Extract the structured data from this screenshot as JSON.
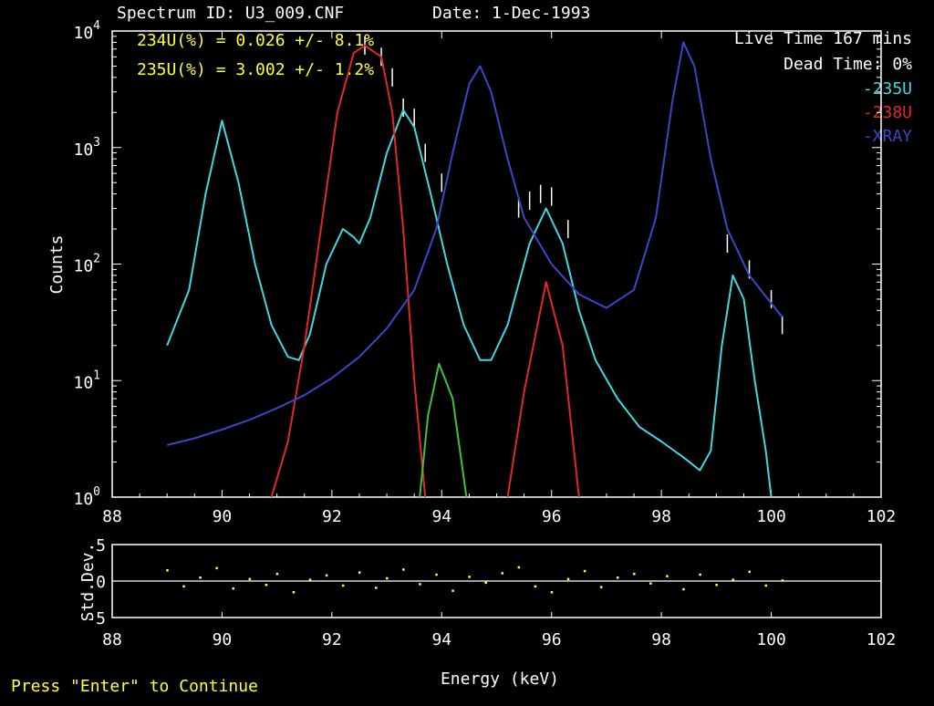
{
  "header": {
    "spectrum_id": "Spectrum ID: U3_009.CNF",
    "date": "Date:   1-Dec-1993"
  },
  "results": {
    "line1": "234U(%) = 0.026 +/-  8.1%",
    "line2": "235U(%) = 3.002 +/-  1.2%"
  },
  "info": {
    "live_time": "Live Time 167 mins",
    "dead_time": "Dead Time:   0%"
  },
  "footer": {
    "prompt": "Press \"Enter\" to Continue"
  },
  "colors": {
    "background": "#000000",
    "data": "#ffffff",
    "u235": "#40d8e0",
    "u238": "#e02828",
    "xray": "#3848c8",
    "green": "#40c040",
    "residual": "#ffff3c"
  },
  "chart_data": [
    {
      "type": "line",
      "ylabel": "Counts",
      "xlabel": "",
      "y_scale": "log",
      "xlim": [
        88,
        102
      ],
      "ylim": [
        1,
        10000
      ],
      "x_ticks": [
        "88",
        "90",
        "92",
        "94",
        "96",
        "98",
        "100",
        "102"
      ],
      "y_ticks": [
        {
          "base": "10",
          "exp": "0"
        },
        {
          "base": "10",
          "exp": "1"
        },
        {
          "base": "10",
          "exp": "2"
        },
        {
          "base": "10",
          "exp": "3"
        },
        {
          "base": "10",
          "exp": "4"
        }
      ],
      "legend": [
        "-235U",
        "-238U",
        "-XRAY"
      ],
      "legend_position": "top-right",
      "series": [
        {
          "name": "-235U",
          "points": [
            [
              89.0,
              20
            ],
            [
              89.4,
              60
            ],
            [
              89.7,
              400
            ],
            [
              90.0,
              1700
            ],
            [
              90.3,
              500
            ],
            [
              90.6,
              100
            ],
            [
              90.9,
              30
            ],
            [
              91.2,
              16
            ],
            [
              91.4,
              15
            ],
            [
              91.6,
              25
            ],
            [
              91.9,
              100
            ],
            [
              92.2,
              200
            ],
            [
              92.4,
              170
            ],
            [
              92.5,
              150
            ],
            [
              92.7,
              250
            ],
            [
              93.0,
              900
            ],
            [
              93.3,
              2100
            ],
            [
              93.5,
              1500
            ],
            [
              93.8,
              400
            ],
            [
              94.1,
              100
            ],
            [
              94.4,
              30
            ],
            [
              94.7,
              15
            ],
            [
              94.9,
              15
            ],
            [
              95.2,
              30
            ],
            [
              95.6,
              150
            ],
            [
              95.9,
              300
            ],
            [
              96.2,
              150
            ],
            [
              96.5,
              40
            ],
            [
              96.8,
              15
            ],
            [
              97.2,
              7
            ],
            [
              97.6,
              4
            ],
            [
              98.0,
              3
            ],
            [
              98.4,
              2.2
            ],
            [
              98.7,
              1.7
            ],
            [
              98.9,
              2.5
            ],
            [
              99.1,
              20
            ],
            [
              99.3,
              80
            ],
            [
              99.5,
              50
            ],
            [
              99.7,
              10
            ],
            [
              99.9,
              2.5
            ],
            [
              100.0,
              1.0
            ]
          ]
        },
        {
          "name": "-238U",
          "points": [
            [
              90.9,
              1.0
            ],
            [
              91.2,
              3
            ],
            [
              91.5,
              20
            ],
            [
              91.8,
              200
            ],
            [
              92.1,
              2000
            ],
            [
              92.4,
              6500
            ],
            [
              92.6,
              7500
            ],
            [
              92.9,
              6000
            ],
            [
              93.1,
              2000
            ],
            [
              93.3,
              200
            ],
            [
              93.5,
              10
            ],
            [
              93.7,
              1.0
            ]
          ]
        },
        {
          "name": "",
          "points": [
            [
              95.2,
              1.0
            ],
            [
              95.5,
              8
            ],
            [
              95.9,
              70
            ],
            [
              96.2,
              20
            ],
            [
              96.5,
              1.0
            ]
          ]
        },
        {
          "name": "-XRAY",
          "points": [
            [
              89.0,
              2.8
            ],
            [
              89.5,
              3.2
            ],
            [
              90.0,
              3.8
            ],
            [
              90.5,
              4.6
            ],
            [
              91.0,
              5.8
            ],
            [
              91.5,
              7.5
            ],
            [
              92.0,
              10.5
            ],
            [
              92.5,
              16
            ],
            [
              93.0,
              28
            ],
            [
              93.5,
              60
            ],
            [
              93.9,
              200
            ],
            [
              94.2,
              900
            ],
            [
              94.5,
              3500
            ],
            [
              94.7,
              5000
            ],
            [
              94.9,
              3000
            ],
            [
              95.2,
              800
            ],
            [
              95.5,
              250
            ],
            [
              96.0,
              100
            ],
            [
              96.5,
              55
            ],
            [
              97.0,
              42
            ],
            [
              97.5,
              60
            ],
            [
              97.9,
              250
            ],
            [
              98.2,
              2500
            ],
            [
              98.4,
              8000
            ],
            [
              98.6,
              5000
            ],
            [
              98.9,
              800
            ],
            [
              99.2,
              200
            ],
            [
              99.6,
              80
            ],
            [
              100.2,
              35
            ]
          ]
        },
        {
          "name": "",
          "points": [
            [
              93.6,
              1.0
            ],
            [
              93.75,
              5
            ],
            [
              93.95,
              14
            ],
            [
              94.2,
              7
            ],
            [
              94.45,
              1.0
            ]
          ]
        }
      ],
      "measured_markers": [
        [
          92.6,
          7500
        ],
        [
          92.9,
          6000
        ],
        [
          93.1,
          4000
        ],
        [
          93.3,
          2200
        ],
        [
          93.5,
          1800
        ],
        [
          93.7,
          900
        ],
        [
          94.0,
          500
        ],
        [
          95.4,
          300
        ],
        [
          95.6,
          350
        ],
        [
          95.8,
          400
        ],
        [
          96.0,
          380
        ],
        [
          96.3,
          200
        ],
        [
          99.2,
          150
        ],
        [
          99.6,
          90
        ],
        [
          100.0,
          50
        ],
        [
          100.2,
          30
        ]
      ]
    },
    {
      "type": "scatter",
      "ylabel": "Std.Dev.",
      "xlabel": "Energy (keV)",
      "xlim": [
        88,
        102
      ],
      "ylim": [
        -5,
        5
      ],
      "x_ticks": [
        "88",
        "90",
        "92",
        "94",
        "96",
        "98",
        "100",
        "102"
      ],
      "y_ticks": [
        "-5",
        "0",
        "5"
      ],
      "points": [
        [
          89.0,
          1.5
        ],
        [
          89.3,
          -0.7
        ],
        [
          89.6,
          0.5
        ],
        [
          89.9,
          1.8
        ],
        [
          90.2,
          -1.0
        ],
        [
          90.5,
          0.3
        ],
        [
          90.8,
          -0.5
        ],
        [
          91.0,
          1.0
        ],
        [
          91.3,
          -1.5
        ],
        [
          91.6,
          0.2
        ],
        [
          91.9,
          0.8
        ],
        [
          92.2,
          -0.6
        ],
        [
          92.5,
          1.2
        ],
        [
          92.8,
          -0.9
        ],
        [
          93.0,
          0.4
        ],
        [
          93.3,
          1.6
        ],
        [
          93.6,
          -0.4
        ],
        [
          93.9,
          0.9
        ],
        [
          94.2,
          -1.3
        ],
        [
          94.5,
          0.6
        ],
        [
          94.8,
          -0.2
        ],
        [
          95.1,
          1.1
        ],
        [
          95.4,
          1.9
        ],
        [
          95.7,
          -0.7
        ],
        [
          96.0,
          -1.5
        ],
        [
          96.3,
          0.3
        ],
        [
          96.6,
          1.4
        ],
        [
          96.9,
          -0.8
        ],
        [
          97.2,
          0.5
        ],
        [
          97.5,
          1.0
        ],
        [
          97.8,
          -0.3
        ],
        [
          98.1,
          0.7
        ],
        [
          98.4,
          -1.1
        ],
        [
          98.7,
          0.9
        ],
        [
          99.0,
          -0.5
        ],
        [
          99.3,
          0.2
        ],
        [
          99.6,
          1.3
        ],
        [
          99.9,
          -0.6
        ],
        [
          100.2,
          0.1
        ]
      ]
    }
  ]
}
